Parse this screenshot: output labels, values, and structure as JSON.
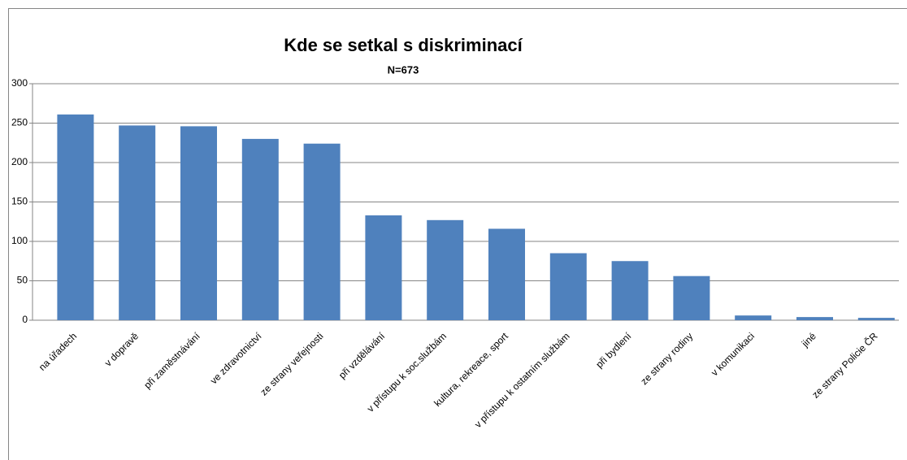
{
  "chart_data": {
    "type": "bar",
    "title": "Kde se setkal s diskriminací",
    "subtitle": "N=673",
    "categories": [
      "na úřadech",
      "v dopravě",
      "při zaměstnávání",
      "ve zdravotnictví",
      "ze strany veřejnosti",
      "při vzdělávání",
      "v přístupu k soc.službám",
      "kultura, rekreace, sport",
      "v přístupu k ostatním službám",
      "při bydlení",
      "ze strany rodiny",
      "v komunikaci",
      "jiné",
      "ze strany Policie ČR"
    ],
    "values": [
      261,
      247,
      246,
      230,
      224,
      133,
      127,
      116,
      85,
      75,
      56,
      6,
      4,
      3
    ],
    "color": "#4f81bd",
    "ylim": [
      0,
      300
    ],
    "yticks": [
      0,
      50,
      100,
      150,
      200,
      250,
      300
    ],
    "grid": true
  }
}
